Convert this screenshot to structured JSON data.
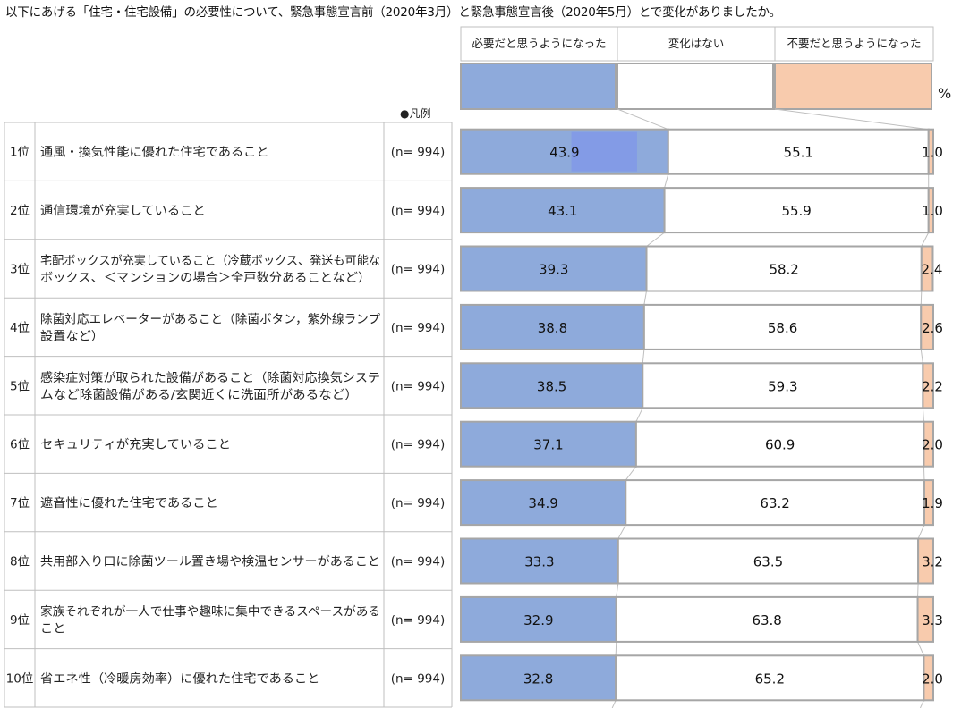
{
  "title": "以下にあげる「住宅・住宅設備」の必要性について、緊急事態宣言前（2020年3月）と緊急事態宣言後（2020年5月）とで変化がありましたか。",
  "unit": "%",
  "legend_label": "●凡例",
  "colors": {
    "needed": "#8eaadb",
    "no_change": "#ffffff",
    "not_needed": "#f8cbad",
    "border": "#a6a6a6",
    "table_line": "#bfbfbf",
    "highlight": "#7f95ea"
  },
  "chart_data": {
    "type": "bar",
    "orientation": "horizontal",
    "stacked": true,
    "normalized": true,
    "xlim": [
      0,
      100
    ],
    "grid": false,
    "legend_position": "top",
    "series": [
      {
        "name": "必要だと思うようになった",
        "values": [
          43.9,
          43.1,
          39.3,
          38.8,
          38.5,
          37.1,
          34.9,
          33.3,
          32.9,
          32.8
        ]
      },
      {
        "name": "変化はない",
        "values": [
          55.1,
          55.9,
          58.2,
          58.6,
          59.3,
          60.9,
          63.2,
          63.5,
          63.8,
          65.2
        ]
      },
      {
        "name": "不要だと思うようになった",
        "values": [
          1.0,
          1.0,
          2.4,
          2.6,
          2.2,
          2.0,
          1.9,
          3.2,
          3.3,
          2.0
        ]
      }
    ],
    "categories": [
      {
        "rank": "1位",
        "label": [
          "通風・換気性能に優れた住宅であること"
        ],
        "n": "(n=  994)"
      },
      {
        "rank": "2位",
        "label": [
          "通信環境が充実していること"
        ],
        "n": "(n=  994)"
      },
      {
        "rank": "3位",
        "label": [
          "宅配ボックスが充実していること（冷蔵ボックス、発送も可能な",
          "ボックス、＜マンションの場合＞全戸数分あることなど）"
        ],
        "n": "(n=  994)"
      },
      {
        "rank": "4位",
        "label": [
          "除菌対応エレベーターがあること（除菌ボタン，紫外線ランプ",
          "設置など）"
        ],
        "n": "(n=  994)"
      },
      {
        "rank": "5位",
        "label": [
          "感染症対策が取られた設備があること（除菌対応換気システ",
          "ムなど除菌設備がある/玄関近くに洗面所があるなど）"
        ],
        "n": "(n=  994)"
      },
      {
        "rank": "6位",
        "label": [
          "セキュリティが充実していること"
        ],
        "n": "(n=  994)"
      },
      {
        "rank": "7位",
        "label": [
          "遮音性に優れた住宅であること"
        ],
        "n": "(n=  994)"
      },
      {
        "rank": "8位",
        "label": [
          "共用部入り口に除菌ツール置き場や検温センサーがあること"
        ],
        "n": "(n=  994)"
      },
      {
        "rank": "9位",
        "label": [
          "家族それぞれが一人で仕事や趣味に集中できるスペースがある",
          "こと"
        ],
        "n": "(n=  994)"
      },
      {
        "rank": "10位",
        "label": [
          "省エネ性（冷暖房効率）に優れた住宅であること"
        ],
        "n": "(n=  994)"
      }
    ]
  }
}
